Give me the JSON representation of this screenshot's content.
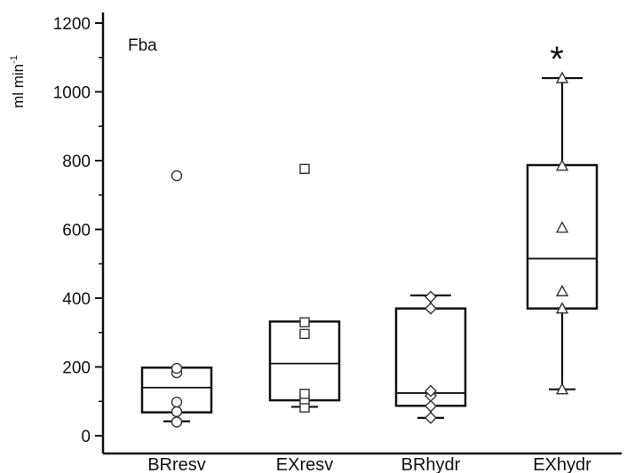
{
  "chart_data": {
    "type": "box",
    "panel_label": "Fba",
    "ylabel": "ml min",
    "ylabel_superscript": "-1",
    "ylim": [
      0,
      1200
    ],
    "yticks": [
      0,
      200,
      400,
      600,
      800,
      1000,
      1200
    ],
    "categories": [
      "BRresv",
      "EXresv",
      "BRhydr",
      "EXhydr"
    ],
    "boxes": [
      {
        "name": "BRresv",
        "marker": "circle",
        "q1": 68,
        "median": 140,
        "q3": 198,
        "whisker_low": 42,
        "whisker_high": null,
        "points": [
          40,
          70,
          98,
          183,
          196,
          756
        ]
      },
      {
        "name": "EXresv",
        "marker": "square",
        "q1": 103,
        "median": 210,
        "q3": 332,
        "whisker_low": 84,
        "whisker_high": null,
        "points": [
          82,
          106,
          122,
          296,
          330,
          776
        ]
      },
      {
        "name": "BRhydr",
        "marker": "diamond",
        "q1": 87,
        "median": 124,
        "q3": 370,
        "whisker_low": 52,
        "whisker_high": 408,
        "points": [
          52,
          86,
          116,
          130,
          370,
          404
        ]
      },
      {
        "name": "EXhydr",
        "marker": "triangle",
        "q1": 370,
        "median": 515,
        "q3": 787,
        "whisker_low": 135,
        "whisker_high": 1040,
        "points": [
          135,
          370,
          420,
          605,
          785,
          1040
        ]
      }
    ],
    "annotations": [
      {
        "category": "EXhydr",
        "text": "*"
      }
    ],
    "grid": false,
    "legend": "none"
  }
}
